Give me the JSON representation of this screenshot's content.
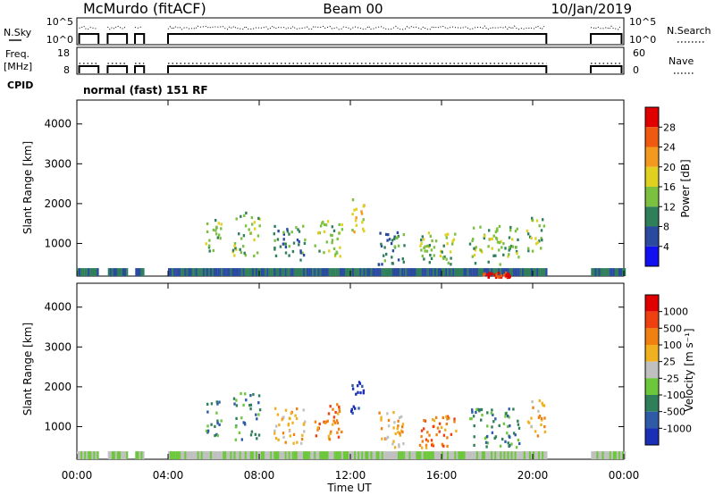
{
  "header": {
    "station_title": "McMurdo (fitACF)",
    "beam_label": "Beam 00",
    "date_label": "10/Jan/2019"
  },
  "noise_panel": {
    "left_label": "N.Sky",
    "left_ticks": [
      "10^5",
      "10^0"
    ],
    "right_ticks": [
      "10^5",
      "10^0"
    ],
    "right_label": "N.Search"
  },
  "freq_panel": {
    "left_label_top": "Freq.",
    "left_label_unit": "[MHz]",
    "left_ticks": [
      "18",
      "8"
    ],
    "right_ticks": [
      "60",
      "0"
    ],
    "right_label": "Nave"
  },
  "cpid": {
    "label": "CPID",
    "mode": "normal (fast) 151 RF"
  },
  "power_panel": {
    "ylabel": "Slant Range [km]",
    "colorbar_label": "Power [dB]"
  },
  "velocity_panel": {
    "ylabel": "Slant Range [km]",
    "colorbar_label": "Velocity [m s⁻¹]"
  },
  "xaxis": {
    "label": "Time UT",
    "tick_labels": [
      "00:00",
      "04:00",
      "08:00",
      "12:00",
      "16:00",
      "20:00",
      "00:00"
    ]
  },
  "chart_data": [
    {
      "type": "heatmap",
      "title": "",
      "xlabel": "Time UT",
      "ylabel": "Slant Range [km]",
      "xlim_hours": [
        0,
        24
      ],
      "ylim_km": [
        180,
        4600
      ],
      "y_ticks": [
        1000,
        2000,
        3000,
        4000
      ],
      "colorbar": {
        "label": "Power [dB]",
        "ticks": [
          "4",
          "8",
          "12",
          "16",
          "20",
          "24",
          "28"
        ],
        "colors": [
          "#1010f0",
          "#2a4aa0",
          "#2f7f5a",
          "#7cc040",
          "#e0d020",
          "#f39a1e",
          "#ef5a10",
          "#e00000"
        ]
      },
      "data_gaps_hours": [
        [
          0.95,
          1.35
        ],
        [
          2.2,
          2.55
        ],
        [
          2.95,
          4.0
        ],
        [
          20.6,
          22.55
        ]
      ],
      "echo_regions": [
        {
          "t_start": 5.6,
          "t_end": 6.3,
          "r_min": 800,
          "r_max": 1700,
          "level": 3
        },
        {
          "t_start": 6.8,
          "t_end": 8.0,
          "r_min": 700,
          "r_max": 1900,
          "level": 3
        },
        {
          "t_start": 8.6,
          "t_end": 10.0,
          "r_min": 600,
          "r_max": 1500,
          "level": 2
        },
        {
          "t_start": 10.4,
          "t_end": 11.6,
          "r_min": 700,
          "r_max": 1600,
          "level": 3
        },
        {
          "t_start": 12.0,
          "t_end": 12.6,
          "r_min": 1300,
          "r_max": 2200,
          "level": 4
        },
        {
          "t_start": 13.2,
          "t_end": 14.4,
          "r_min": 500,
          "r_max": 1400,
          "level": 2
        },
        {
          "t_start": 15.0,
          "t_end": 16.6,
          "r_min": 500,
          "r_max": 1300,
          "level": 3
        },
        {
          "t_start": 17.2,
          "t_end": 19.4,
          "r_min": 500,
          "r_max": 1500,
          "level": 3
        },
        {
          "t_start": 19.7,
          "t_end": 20.5,
          "r_min": 800,
          "r_max": 1700,
          "level": 3
        },
        {
          "t_start": 17.8,
          "t_end": 19.0,
          "r_min": 180,
          "r_max": 300,
          "level": 7
        }
      ]
    },
    {
      "type": "heatmap",
      "title": "",
      "xlabel": "Time UT",
      "ylabel": "Slant Range [km]",
      "xlim_hours": [
        0,
        24
      ],
      "ylim_km": [
        180,
        4600
      ],
      "y_ticks": [
        1000,
        2000,
        3000,
        4000
      ],
      "colorbar": {
        "label": "Velocity [m s⁻¹]",
        "ticks": [
          "1000",
          "500",
          "100",
          "25",
          "-25",
          "-100",
          "-500",
          "-1000"
        ],
        "colors": [
          "#1a2fb8",
          "#2f5aa8",
          "#2f7f5a",
          "#6cc83a",
          "#c0c0c0",
          "#f0b020",
          "#f08010",
          "#ef4010",
          "#e00000"
        ]
      },
      "data_gaps_hours": [
        [
          0.95,
          1.35
        ],
        [
          2.2,
          2.55
        ],
        [
          2.95,
          4.0
        ],
        [
          20.6,
          22.55
        ]
      ],
      "echo_regions": [
        {
          "t_start": 5.6,
          "t_end": 6.3,
          "r_min": 800,
          "r_max": 1700,
          "level": 2
        },
        {
          "t_start": 6.8,
          "t_end": 8.0,
          "r_min": 700,
          "r_max": 1900,
          "level": 2
        },
        {
          "t_start": 8.6,
          "t_end": 10.0,
          "r_min": 600,
          "r_max": 1500,
          "level": 5
        },
        {
          "t_start": 10.4,
          "t_end": 11.6,
          "r_min": 700,
          "r_max": 1600,
          "level": 6
        },
        {
          "t_start": 12.0,
          "t_end": 12.6,
          "r_min": 1300,
          "r_max": 2200,
          "level": 0
        },
        {
          "t_start": 13.2,
          "t_end": 14.4,
          "r_min": 500,
          "r_max": 1400,
          "level": 5
        },
        {
          "t_start": 15.0,
          "t_end": 16.6,
          "r_min": 500,
          "r_max": 1300,
          "level": 6
        },
        {
          "t_start": 17.2,
          "t_end": 19.4,
          "r_min": 500,
          "r_max": 1500,
          "level": 2
        },
        {
          "t_start": 19.7,
          "t_end": 20.5,
          "r_min": 800,
          "r_max": 1700,
          "level": 5
        }
      ]
    }
  ]
}
